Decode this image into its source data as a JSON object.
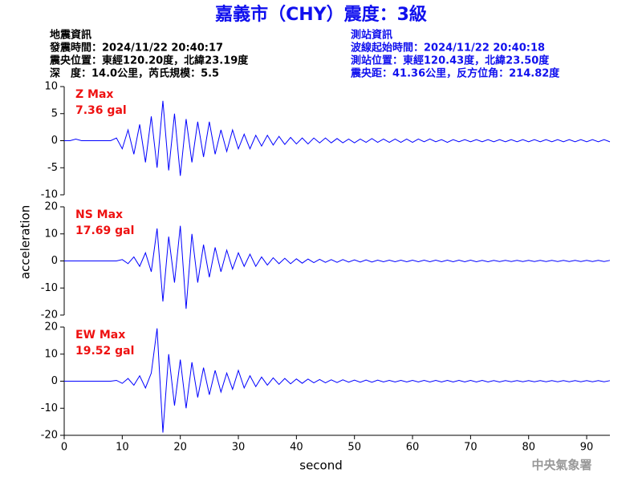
{
  "header": {
    "title": "嘉義市（CHY）震度：3級",
    "left": [
      "地震資訊",
      "發震時間：2024/11/22 20:40:17",
      "震央位置：東經120.20度，北緯23.19度",
      "深　度：14.0公里，芮氏規模：5.5"
    ],
    "right": [
      "測站資訊",
      "波線起始時間：2024/11/22 20:40:18",
      "測站位置：東經120.43度，北緯23.50度",
      "震央距：41.36公里，反方位角：214.82度"
    ]
  },
  "ylabel": "acceleration",
  "footer": "中央氣象署",
  "chart_data": [
    {
      "type": "line",
      "annotations": [
        "Z Max",
        "7.36 gal"
      ],
      "annotation_color": "#ee1111",
      "color": "#0000ff",
      "xlim": [
        0,
        94
      ],
      "ylim": [
        -10,
        10
      ],
      "yticks": [
        -10,
        -5,
        0,
        5,
        10
      ],
      "x": [
        0,
        1,
        2,
        3,
        4,
        5,
        6,
        7,
        8,
        9,
        10,
        11,
        12,
        13,
        14,
        15,
        16,
        17,
        18,
        19,
        20,
        21,
        22,
        23,
        24,
        25,
        26,
        27,
        28,
        29,
        30,
        31,
        32,
        33,
        34,
        35,
        36,
        37,
        38,
        39,
        40,
        41,
        42,
        43,
        44,
        45,
        46,
        47,
        48,
        49,
        50,
        51,
        52,
        53,
        54,
        55,
        56,
        57,
        58,
        59,
        60,
        61,
        62,
        63,
        64,
        65,
        66,
        67,
        68,
        69,
        70,
        71,
        72,
        73,
        74,
        75,
        76,
        77,
        78,
        79,
        80,
        81,
        82,
        83,
        84,
        85,
        86,
        87,
        88,
        89,
        90,
        91,
        92,
        93,
        94
      ],
      "values": [
        0,
        0,
        0.3,
        0,
        0,
        0,
        0,
        0,
        0,
        0.5,
        -1.5,
        2,
        -2.5,
        3,
        -4,
        4.5,
        -5,
        7.36,
        -5.5,
        5,
        -6.5,
        4,
        -4,
        3.5,
        -3,
        3.5,
        -2.5,
        2,
        -2,
        2,
        -1.5,
        1.2,
        -1.5,
        1,
        -1,
        1,
        -0.8,
        0.8,
        -0.7,
        0.6,
        -0.6,
        0.5,
        -0.6,
        0.5,
        -0.4,
        0.5,
        -0.4,
        0.4,
        -0.4,
        0.3,
        -0.4,
        0.3,
        -0.3,
        0.4,
        -0.3,
        0.3,
        -0.3,
        0.3,
        -0.3,
        0.3,
        -0.3,
        0.3,
        -0.2,
        0.3,
        -0.2,
        0.2,
        -0.3,
        0.2,
        -0.2,
        0.2,
        -0.2,
        0.2,
        -0.2,
        0.2,
        -0.2,
        0.2,
        -0.2,
        0.2,
        -0.2,
        0.2,
        -0.2,
        0.2,
        -0.2,
        0.2,
        -0.2,
        0.2,
        -0.2,
        0.2,
        -0.2,
        0.2,
        -0.2,
        0.2,
        -0.2,
        0.2,
        -0.2
      ]
    },
    {
      "type": "line",
      "annotations": [
        "NS Max",
        "17.69 gal"
      ],
      "annotation_color": "#ee1111",
      "color": "#0000ff",
      "xlim": [
        0,
        94
      ],
      "ylim": [
        -20,
        20
      ],
      "yticks": [
        -20,
        -10,
        0,
        10,
        20
      ],
      "x": [
        0,
        1,
        2,
        3,
        4,
        5,
        6,
        7,
        8,
        9,
        10,
        11,
        12,
        13,
        14,
        15,
        16,
        17,
        18,
        19,
        20,
        21,
        22,
        23,
        24,
        25,
        26,
        27,
        28,
        29,
        30,
        31,
        32,
        33,
        34,
        35,
        36,
        37,
        38,
        39,
        40,
        41,
        42,
        43,
        44,
        45,
        46,
        47,
        48,
        49,
        50,
        51,
        52,
        53,
        54,
        55,
        56,
        57,
        58,
        59,
        60,
        61,
        62,
        63,
        64,
        65,
        66,
        67,
        68,
        69,
        70,
        71,
        72,
        73,
        74,
        75,
        76,
        77,
        78,
        79,
        80,
        81,
        82,
        83,
        84,
        85,
        86,
        87,
        88,
        89,
        90,
        91,
        92,
        93,
        94
      ],
      "values": [
        0,
        0,
        0,
        0,
        0,
        0,
        0,
        0,
        0,
        0,
        0.5,
        -1,
        1.5,
        -2,
        3,
        -4,
        12,
        -15,
        9,
        -8,
        13,
        -17.69,
        10,
        -8,
        6,
        -6,
        5,
        -4,
        4,
        -3,
        3,
        -2,
        2.5,
        -2,
        1.5,
        -1.5,
        1.2,
        -1,
        1,
        -1,
        0.8,
        -0.8,
        0.7,
        -0.6,
        0.6,
        -0.5,
        0.5,
        -0.5,
        0.5,
        -0.4,
        0.4,
        -0.4,
        0.4,
        -0.4,
        0.3,
        -0.3,
        0.3,
        -0.3,
        0.3,
        -0.3,
        0.3,
        -0.3,
        0.3,
        -0.3,
        0.3,
        -0.3,
        0.3,
        -0.3,
        0.3,
        -0.3,
        0.3,
        -0.3,
        0.2,
        -0.3,
        0.2,
        -0.2,
        0.2,
        -0.2,
        0.2,
        -0.2,
        0.2,
        -0.2,
        0.2,
        -0.2,
        0.2,
        -0.2,
        0.2,
        -0.2,
        0.2,
        -0.2,
        0.2,
        -0.2,
        0.2,
        -0.2,
        0.2
      ]
    },
    {
      "type": "line",
      "annotations": [
        "EW Max",
        "19.52 gal"
      ],
      "annotation_color": "#ee1111",
      "color": "#0000ff",
      "xlim": [
        0,
        94
      ],
      "ylim": [
        -20,
        20
      ],
      "yticks": [
        -20,
        -10,
        0,
        10,
        20
      ],
      "xticks": [
        0,
        10,
        20,
        30,
        40,
        50,
        60,
        70,
        80,
        90
      ],
      "xlabel": "second",
      "x": [
        0,
        1,
        2,
        3,
        4,
        5,
        6,
        7,
        8,
        9,
        10,
        11,
        12,
        13,
        14,
        15,
        16,
        17,
        18,
        19,
        20,
        21,
        22,
        23,
        24,
        25,
        26,
        27,
        28,
        29,
        30,
        31,
        32,
        33,
        34,
        35,
        36,
        37,
        38,
        39,
        40,
        41,
        42,
        43,
        44,
        45,
        46,
        47,
        48,
        49,
        50,
        51,
        52,
        53,
        54,
        55,
        56,
        57,
        58,
        59,
        60,
        61,
        62,
        63,
        64,
        65,
        66,
        67,
        68,
        69,
        70,
        71,
        72,
        73,
        74,
        75,
        76,
        77,
        78,
        79,
        80,
        81,
        82,
        83,
        84,
        85,
        86,
        87,
        88,
        89,
        90,
        91,
        92,
        93,
        94
      ],
      "values": [
        0,
        0,
        0,
        0,
        0,
        0,
        0,
        0,
        0,
        0.3,
        -0.8,
        1,
        -1.5,
        2,
        -2.5,
        3,
        19.52,
        -19,
        10,
        -9,
        8,
        -10,
        7,
        -6,
        5,
        -5,
        4,
        -4,
        3,
        -3,
        4,
        -2.5,
        2,
        -2,
        1.5,
        -1.5,
        1.2,
        -1.2,
        1,
        -1,
        0.8,
        -0.8,
        0.8,
        -0.6,
        0.6,
        -0.6,
        0.5,
        -0.5,
        0.5,
        -0.4,
        0.4,
        -0.4,
        0.4,
        -0.4,
        0.4,
        -0.3,
        0.3,
        -0.3,
        0.3,
        -0.3,
        0.3,
        -0.3,
        0.3,
        -0.3,
        0.3,
        -0.3,
        0.3,
        -0.3,
        0.3,
        -0.3,
        0.3,
        -0.3,
        0.3,
        -0.3,
        0.2,
        -0.3,
        0.2,
        -0.2,
        0.2,
        -0.2,
        0.2,
        -0.2,
        0.2,
        -0.2,
        0.2,
        -0.2,
        0.2,
        -0.2,
        0.2,
        -0.2,
        0.2,
        -0.2,
        0.2,
        -0.2,
        0.2
      ]
    }
  ]
}
